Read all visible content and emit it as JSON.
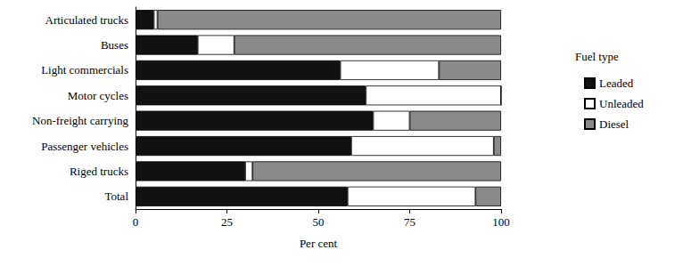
{
  "chart_data": {
    "type": "bar",
    "orientation": "horizontal",
    "stacked": true,
    "x_label": "Per cent",
    "legend_title": "Fuel type",
    "legend": "right",
    "grid": false,
    "categories": [
      "Articulated trucks",
      "Buses",
      "Light commercials",
      "Motor cycles",
      "Non-freight carrying",
      "Passenger vehicles",
      "Riged trucks",
      "Total"
    ],
    "series": [
      {
        "name": "Leaded",
        "color": "#111111",
        "values": [
          5,
          17,
          56,
          63,
          65,
          59,
          30,
          58
        ]
      },
      {
        "name": "Unleaded",
        "color": "#ffffff",
        "values": [
          1,
          10,
          27,
          37,
          10,
          39,
          2,
          35
        ]
      },
      {
        "name": "Diesel",
        "color": "#8a8a8a",
        "values": [
          94,
          73,
          17,
          0,
          25,
          2,
          68,
          7
        ]
      }
    ],
    "xlim": [
      0,
      100
    ],
    "xticks": [
      0,
      25,
      50,
      75,
      100
    ]
  }
}
